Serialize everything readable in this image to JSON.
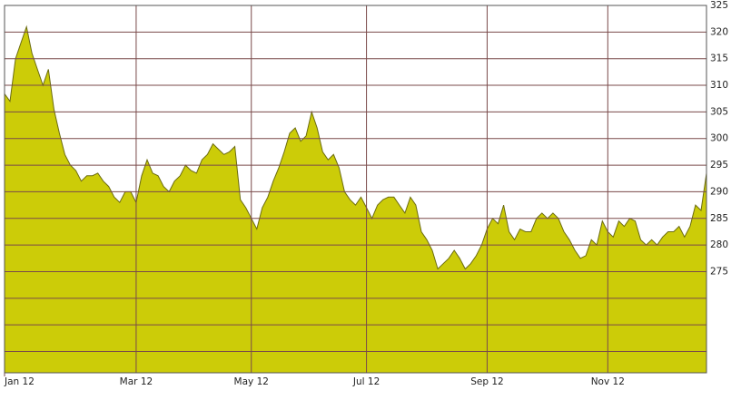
{
  "chart_data": {
    "type": "area",
    "color": "#cccc08",
    "line_color": "#6b6b10",
    "grid": true,
    "values": [
      308.4,
      307,
      315,
      318,
      321,
      316,
      313,
      310,
      313,
      305.5,
      301,
      297,
      295,
      294,
      292,
      293,
      293,
      293.5,
      292,
      291,
      289,
      288,
      290,
      290,
      288,
      293,
      296,
      293.5,
      293,
      291,
      290,
      292,
      293,
      295,
      294,
      293.5,
      296,
      297,
      299,
      298,
      297,
      297.5,
      298.5,
      288.5,
      287,
      285,
      283,
      287,
      289,
      292,
      294.5,
      297.5,
      301,
      302,
      299.5,
      300.5,
      305,
      302,
      297.5,
      296,
      297,
      294.5,
      290,
      288.5,
      287.5,
      289,
      287,
      285,
      287.5,
      288.5,
      289,
      289,
      287.5,
      286,
      289,
      287.5,
      282.5,
      281,
      279,
      275.5,
      276.5,
      277.5,
      279,
      277.5,
      275.5,
      276.5,
      278,
      280,
      283,
      285,
      284,
      287.5,
      282.5,
      281,
      283,
      282.5,
      282.5,
      285,
      286,
      285,
      286,
      285,
      282.5,
      281,
      279,
      277.5,
      278,
      281,
      280,
      284.5,
      282.5,
      281.5,
      284.5,
      283.5,
      285,
      284.5,
      281,
      280,
      281,
      280,
      281.5,
      282.5,
      282.5,
      283.5,
      281.5,
      283.5,
      287.5,
      286.5,
      293.5
    ],
    "xlim": [
      0,
      128
    ],
    "xticks": [
      {
        "value": 0,
        "label": "Jan 12"
      },
      {
        "value": 24,
        "label": "Mar 12"
      },
      {
        "value": 45,
        "label": "May 12"
      },
      {
        "value": 66,
        "label": "Jul 12"
      },
      {
        "value": 88,
        "label": "Sep 12"
      },
      {
        "value": 110,
        "label": "Nov 12"
      }
    ],
    "ylim": [
      256,
      325
    ],
    "yticks": [
      {
        "value": 260,
        "label": null
      },
      {
        "value": 265,
        "label": null
      },
      {
        "value": 270,
        "label": null
      },
      275,
      280,
      285,
      290,
      295,
      300,
      305,
      310,
      315,
      320,
      325
    ]
  }
}
